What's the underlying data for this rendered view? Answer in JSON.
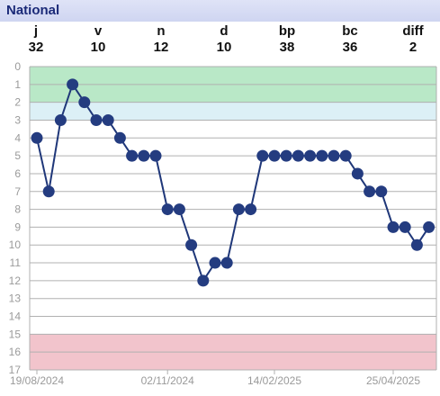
{
  "header": {
    "title": "National"
  },
  "stats": [
    {
      "label": "j",
      "value": "32"
    },
    {
      "label": "v",
      "value": "10"
    },
    {
      "label": "n",
      "value": "12"
    },
    {
      "label": "d",
      "value": "10"
    },
    {
      "label": "bp",
      "value": "38"
    },
    {
      "label": "bc",
      "value": "36"
    },
    {
      "label": "diff",
      "value": "2"
    }
  ],
  "colors": {
    "line": "#1f3779",
    "marker": "#243c80",
    "band_top": "#b9e8c7",
    "band_second": "#dcf0f6",
    "band_bottom": "#f2c4cc",
    "grid": "#b0b0b0"
  },
  "chart_data": {
    "type": "line",
    "y_inverted": true,
    "ylim": [
      0,
      17
    ],
    "yticks": [
      0,
      1,
      2,
      3,
      4,
      5,
      6,
      7,
      8,
      9,
      10,
      11,
      12,
      13,
      14,
      15,
      16,
      17
    ],
    "x_tick_labels": [
      "19/08/2024",
      "02/11/2024",
      "14/02/2025",
      "25/04/2025"
    ],
    "x_tick_indices": [
      0,
      11,
      20,
      30
    ],
    "bands": [
      {
        "from": 0,
        "to": 2,
        "color": "#b9e8c7"
      },
      {
        "from": 2,
        "to": 3,
        "color": "#dcf0f6"
      },
      {
        "from": 15,
        "to": 17,
        "color": "#f2c4cc"
      }
    ],
    "series": [
      {
        "values": [
          4,
          7,
          3,
          1,
          2,
          3,
          3,
          4,
          5,
          5,
          5,
          8,
          8,
          10,
          12,
          11,
          11,
          8,
          8,
          5,
          5,
          5,
          5,
          5,
          5,
          5,
          5,
          6,
          7,
          7,
          9,
          9,
          10,
          9
        ]
      }
    ],
    "grid": true
  }
}
